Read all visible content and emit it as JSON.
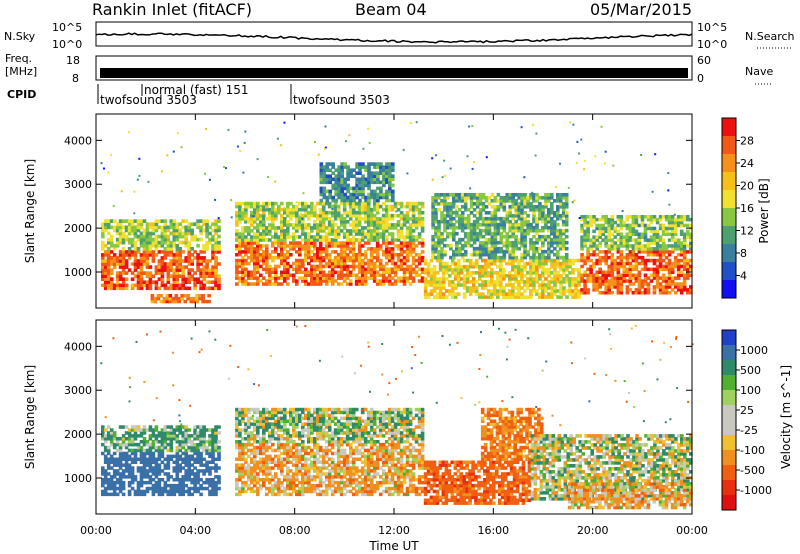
{
  "header": {
    "station": "Rankin Inlet (fitACF)",
    "beam": "Beam 04",
    "date": "05/Mar/2015"
  },
  "top_panels": {
    "nsky_label": "N.Sky",
    "nsearch_label": "N.Search",
    "nsky_ticks": [
      "10^5",
      "10^0"
    ],
    "nsearch_ticks": [
      "10^5",
      "10^0"
    ],
    "freq_label_1": "Freq.",
    "freq_label_2": "[MHz]",
    "freq_ticks": [
      "18",
      "8"
    ],
    "nave_label": "Nave",
    "nave_ticks": [
      "60",
      "0"
    ],
    "cpid_label": "CPID",
    "cpid_segments": [
      {
        "label": "twofsound 3503",
        "start_hour": 0.1
      },
      {
        "label": "normal (fast) 151",
        "start_hour": 1.9
      },
      {
        "label": "twofsound 3503",
        "start_hour": 8.0
      }
    ]
  },
  "power_colorbar": {
    "label": "Power [dB]",
    "ticks": [
      "28",
      "24",
      "20",
      "16",
      "12",
      "8",
      "4"
    ],
    "colors": [
      "#ee1010",
      "#f25818",
      "#f5901a",
      "#f5c018",
      "#f0e030",
      "#88c840",
      "#4ea070",
      "#3a7fa0",
      "#2050c8",
      "#1010f0"
    ]
  },
  "velocity_colorbar": {
    "label": "Velocity [m s^-1]",
    "ticks": [
      "1000",
      "500",
      "100",
      "25",
      "-25",
      "-100",
      "-500",
      "-1000"
    ],
    "colors": [
      "#2040c8",
      "#3a70a8",
      "#2f8a6a",
      "#52b030",
      "#a0d060",
      "#c8c8c0",
      "#c8c8c0",
      "#f0c030",
      "#f09020",
      "#f06010",
      "#e83010",
      "#e01010"
    ]
  },
  "chart_data": {
    "type": "heatmap",
    "x": {
      "label": "Time UT",
      "ticks": [
        "00:00",
        "04:00",
        "08:00",
        "12:00",
        "16:00",
        "20:00",
        "00:00"
      ],
      "range_hours": [
        0,
        24
      ]
    },
    "y": {
      "label": "Slant Range [km]",
      "ticks": [
        "4000",
        "3000",
        "2000",
        "1000"
      ],
      "range_km": [
        180,
        4600
      ]
    },
    "panels": [
      {
        "name": "Power [dB]",
        "bands": [
          {
            "t0": 0.2,
            "t1": 5.0,
            "r0": 600,
            "r1": 1500,
            "value": 26
          },
          {
            "t0": 0.2,
            "t1": 5.0,
            "r0": 1500,
            "r1": 2200,
            "value": 14
          },
          {
            "t0": 2.2,
            "t1": 4.6,
            "r0": 300,
            "r1": 500,
            "value": 24
          },
          {
            "t0": 5.6,
            "t1": 13.2,
            "r0": 700,
            "r1": 1700,
            "value": 25
          },
          {
            "t0": 5.6,
            "t1": 13.2,
            "r0": 1700,
            "r1": 2600,
            "value": 14
          },
          {
            "t0": 9.0,
            "t1": 12.0,
            "r0": 2600,
            "r1": 3500,
            "value": 8
          },
          {
            "t0": 13.2,
            "t1": 19.5,
            "r0": 400,
            "r1": 1300,
            "value": 18
          },
          {
            "t0": 13.5,
            "t1": 19.0,
            "r0": 1300,
            "r1": 2800,
            "value": 11
          },
          {
            "t0": 19.5,
            "t1": 24.0,
            "r0": 500,
            "r1": 1500,
            "value": 26
          },
          {
            "t0": 19.5,
            "t1": 24.0,
            "r0": 1500,
            "r1": 2300,
            "value": 13
          }
        ]
      },
      {
        "name": "Velocity [m s^-1]",
        "bands": [
          {
            "t0": 0.2,
            "t1": 5.0,
            "r0": 600,
            "r1": 1600,
            "value": 500
          },
          {
            "t0": 0.2,
            "t1": 5.0,
            "r0": 1600,
            "r1": 2200,
            "value": 100
          },
          {
            "t0": 5.6,
            "t1": 13.2,
            "r0": 600,
            "r1": 1800,
            "value": -100
          },
          {
            "t0": 5.6,
            "t1": 13.2,
            "r0": 1800,
            "r1": 2600,
            "value": 25
          },
          {
            "t0": 13.2,
            "t1": 17.5,
            "r0": 400,
            "r1": 1400,
            "value": -300
          },
          {
            "t0": 15.5,
            "t1": 18.0,
            "r0": 1400,
            "r1": 2600,
            "value": -200
          },
          {
            "t0": 17.5,
            "t1": 24.0,
            "r0": 500,
            "r1": 2000,
            "value": 0
          },
          {
            "t0": 19.0,
            "t1": 24.0,
            "r0": 300,
            "r1": 900,
            "value": -100
          }
        ]
      }
    ]
  }
}
